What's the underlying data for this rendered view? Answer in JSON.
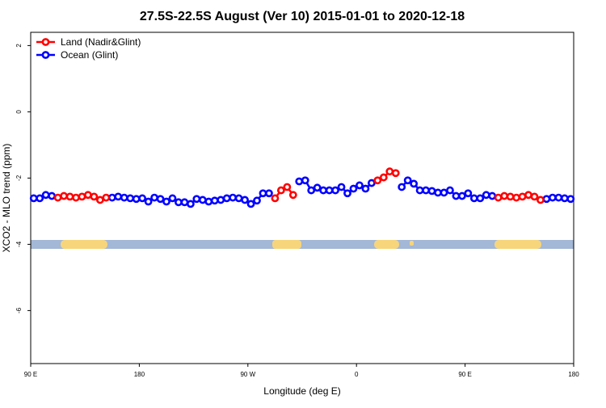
{
  "chart_data": {
    "type": "line",
    "title": "27.5S-22.5S August (Ver 10)   2015-01-01 to 2020-12-18",
    "x_label": "Longitude (deg E)",
    "y_label": "XCO2 - MLO trend (ppm)",
    "legend": "top-left",
    "xlim": [
      90,
      540
    ],
    "ylim": [
      -7.6,
      2.4
    ],
    "xticks": [
      {
        "value": 90,
        "label": "90 E"
      },
      180,
      {
        "value": 270,
        "label": "90 W"
      },
      {
        "value": 360,
        "label": "0"
      },
      {
        "value": 450,
        "label": "90 E"
      },
      {
        "value": 540,
        "label": "180"
      }
    ],
    "yticks": [
      2,
      0,
      -2,
      -4,
      -6
    ],
    "x": [
      92.5,
      97.5,
      102.5,
      107.5,
      112.5,
      117.5,
      122.5,
      127.5,
      132.5,
      137.5,
      142.5,
      147.5,
      152.5,
      157.5,
      162.5,
      167.5,
      172.5,
      177.5,
      182.5,
      187.5,
      192.5,
      197.5,
      202.5,
      207.5,
      212.5,
      217.5,
      222.5,
      227.5,
      232.5,
      237.5,
      242.5,
      247.5,
      252.5,
      257.5,
      262.5,
      267.5,
      272.5,
      277.5,
      282.5,
      287.5,
      292.5,
      297.5,
      302.5,
      307.5,
      312.5,
      317.5,
      322.5,
      327.5,
      332.5,
      337.5,
      342.5,
      347.5,
      352.5,
      357.5,
      362.5,
      367.5,
      372.5,
      377.5,
      382.5,
      387.5,
      392.5,
      397.5,
      402.5,
      407.5,
      412.5,
      417.5,
      422.5,
      427.5,
      432.5,
      437.5,
      442.5,
      447.5,
      452.5,
      457.5,
      462.5,
      467.5,
      472.5,
      477.5,
      482.5,
      487.5,
      492.5,
      497.5,
      502.5,
      507.5,
      512.5,
      517.5,
      522.5,
      527.5,
      532.5,
      537.5
    ],
    "series": [
      {
        "name": "Ocean (Glint)",
        "color": "#0000ff",
        "values": [
          -2.61,
          -2.61,
          -2.51,
          -2.54,
          null,
          null,
          null,
          null,
          null,
          null,
          null,
          null,
          null,
          -2.59,
          -2.56,
          -2.59,
          -2.61,
          -2.63,
          -2.61,
          -2.71,
          -2.59,
          -2.63,
          -2.71,
          -2.61,
          -2.73,
          -2.73,
          -2.78,
          -2.63,
          -2.66,
          -2.71,
          -2.68,
          -2.66,
          -2.61,
          -2.59,
          -2.61,
          -2.66,
          -2.78,
          -2.68,
          -2.46,
          -2.46,
          null,
          null,
          null,
          null,
          -2.1,
          -2.07,
          -2.37,
          -2.29,
          -2.37,
          -2.37,
          -2.37,
          -2.27,
          -2.46,
          -2.32,
          -2.22,
          -2.32,
          -2.15,
          null,
          null,
          null,
          null,
          -2.27,
          -2.07,
          -2.17,
          -2.37,
          -2.37,
          -2.39,
          -2.44,
          -2.44,
          -2.37,
          -2.54,
          -2.54,
          -2.46,
          -2.61,
          -2.61,
          -2.51,
          -2.54,
          null,
          null,
          null,
          null,
          null,
          null,
          null,
          null,
          -2.63,
          -2.59,
          -2.59,
          -2.61,
          -2.63
        ]
      },
      {
        "name": "Land (Nadir&Glint)",
        "color": "#ff0000",
        "values": [
          null,
          null,
          null,
          null,
          -2.59,
          -2.54,
          -2.56,
          -2.59,
          -2.56,
          -2.51,
          -2.56,
          -2.66,
          -2.59,
          null,
          null,
          null,
          null,
          null,
          null,
          null,
          null,
          null,
          null,
          null,
          null,
          null,
          null,
          null,
          null,
          null,
          null,
          null,
          null,
          null,
          null,
          null,
          null,
          null,
          null,
          null,
          -2.61,
          -2.37,
          -2.27,
          -2.51,
          null,
          null,
          null,
          null,
          null,
          null,
          null,
          null,
          null,
          null,
          null,
          null,
          null,
          -2.07,
          -1.98,
          -1.8,
          -1.85,
          null,
          null,
          null,
          null,
          null,
          null,
          null,
          null,
          null,
          null,
          null,
          null,
          null,
          null,
          null,
          null,
          -2.59,
          -2.54,
          -2.56,
          -2.59,
          -2.56,
          -2.51,
          -2.56,
          -2.66,
          null,
          null,
          null,
          null,
          null
        ]
      }
    ]
  }
}
